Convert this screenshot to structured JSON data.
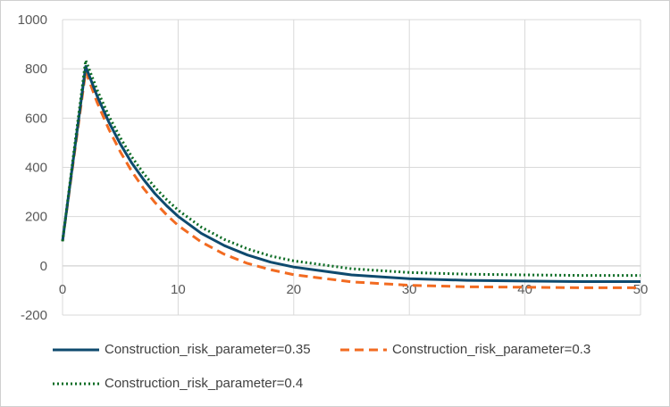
{
  "chart_data": {
    "type": "line",
    "title": "",
    "xlabel": "",
    "ylabel": "",
    "xlim": [
      0,
      50
    ],
    "ylim": [
      -200,
      1000
    ],
    "grid": true,
    "legend_position": "bottom",
    "x_ticks": [
      "0",
      "10",
      "20",
      "30",
      "40",
      "50"
    ],
    "y_ticks": [
      "-200",
      "0",
      "200",
      "400",
      "600",
      "800",
      "1000"
    ],
    "x": [
      0,
      1,
      2,
      3,
      4,
      5,
      6,
      7,
      8,
      9,
      10,
      12,
      14,
      16,
      18,
      20,
      25,
      30,
      35,
      40,
      45,
      50
    ],
    "series": [
      {
        "name": "Construction_risk_parameter=0.35",
        "color": "#0e4a6e",
        "style": "solid",
        "values": [
          100,
          455,
          810,
          689,
          584,
          495,
          417,
          351,
          293,
          244,
          201,
          132,
          82,
          44,
          15,
          -5,
          -37,
          -52,
          -59,
          -62,
          -64,
          -64
        ]
      },
      {
        "name": "Construction_risk_parameter=0.3",
        "color": "#f26b21",
        "style": "dashed",
        "values": [
          100,
          445,
          790,
          663,
          555,
          463,
          383,
          315,
          257,
          207,
          164,
          97,
          47,
          10,
          -16,
          -36,
          -65,
          -79,
          -85,
          -87,
          -89,
          -89
        ]
      },
      {
        "name": "Construction_risk_parameter=0.4",
        "color": "#0b6b23",
        "style": "dotted",
        "values": [
          100,
          468,
          835,
          714,
          609,
          520,
          442,
          376,
          318,
          269,
          226,
          157,
          107,
          69,
          40,
          20,
          -12,
          -27,
          -34,
          -37,
          -39,
          -39
        ]
      }
    ]
  }
}
